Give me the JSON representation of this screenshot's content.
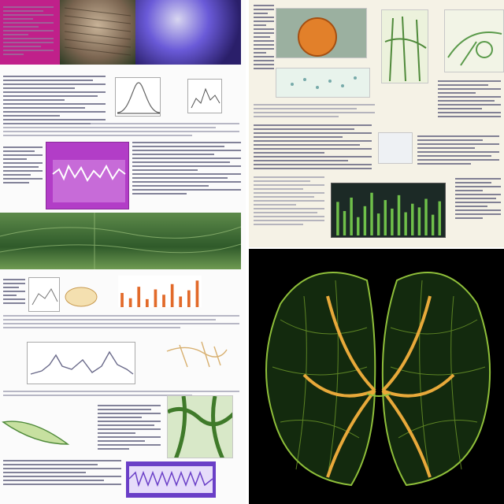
{
  "layout_hint": "",
  "left": {
    "top_photo": {
      "stripes": 16
    },
    "bell_chart": {
      "type": "line"
    },
    "magenta_chart": {
      "type": "line"
    },
    "bar_chart": {
      "type": "bar",
      "values": [
        32,
        20,
        46,
        18,
        40,
        28,
        52,
        24,
        38,
        60
      ]
    },
    "wave_chart": {
      "type": "line"
    },
    "bottom_purple_chart": {
      "type": "bar"
    }
  },
  "right": {
    "dark_bar_chart": {
      "type": "bar",
      "values": [
        55,
        40,
        62,
        30,
        48,
        70,
        36,
        58,
        44,
        66,
        38,
        52,
        46,
        60,
        34,
        56
      ]
    }
  },
  "colors": {
    "magenta": "#b23dc7",
    "leaf_green": "#4d7a3e",
    "vein_orange": "#e8a93a",
    "vein_green": "#8fbf3a",
    "purple": "#6a3fc7"
  }
}
